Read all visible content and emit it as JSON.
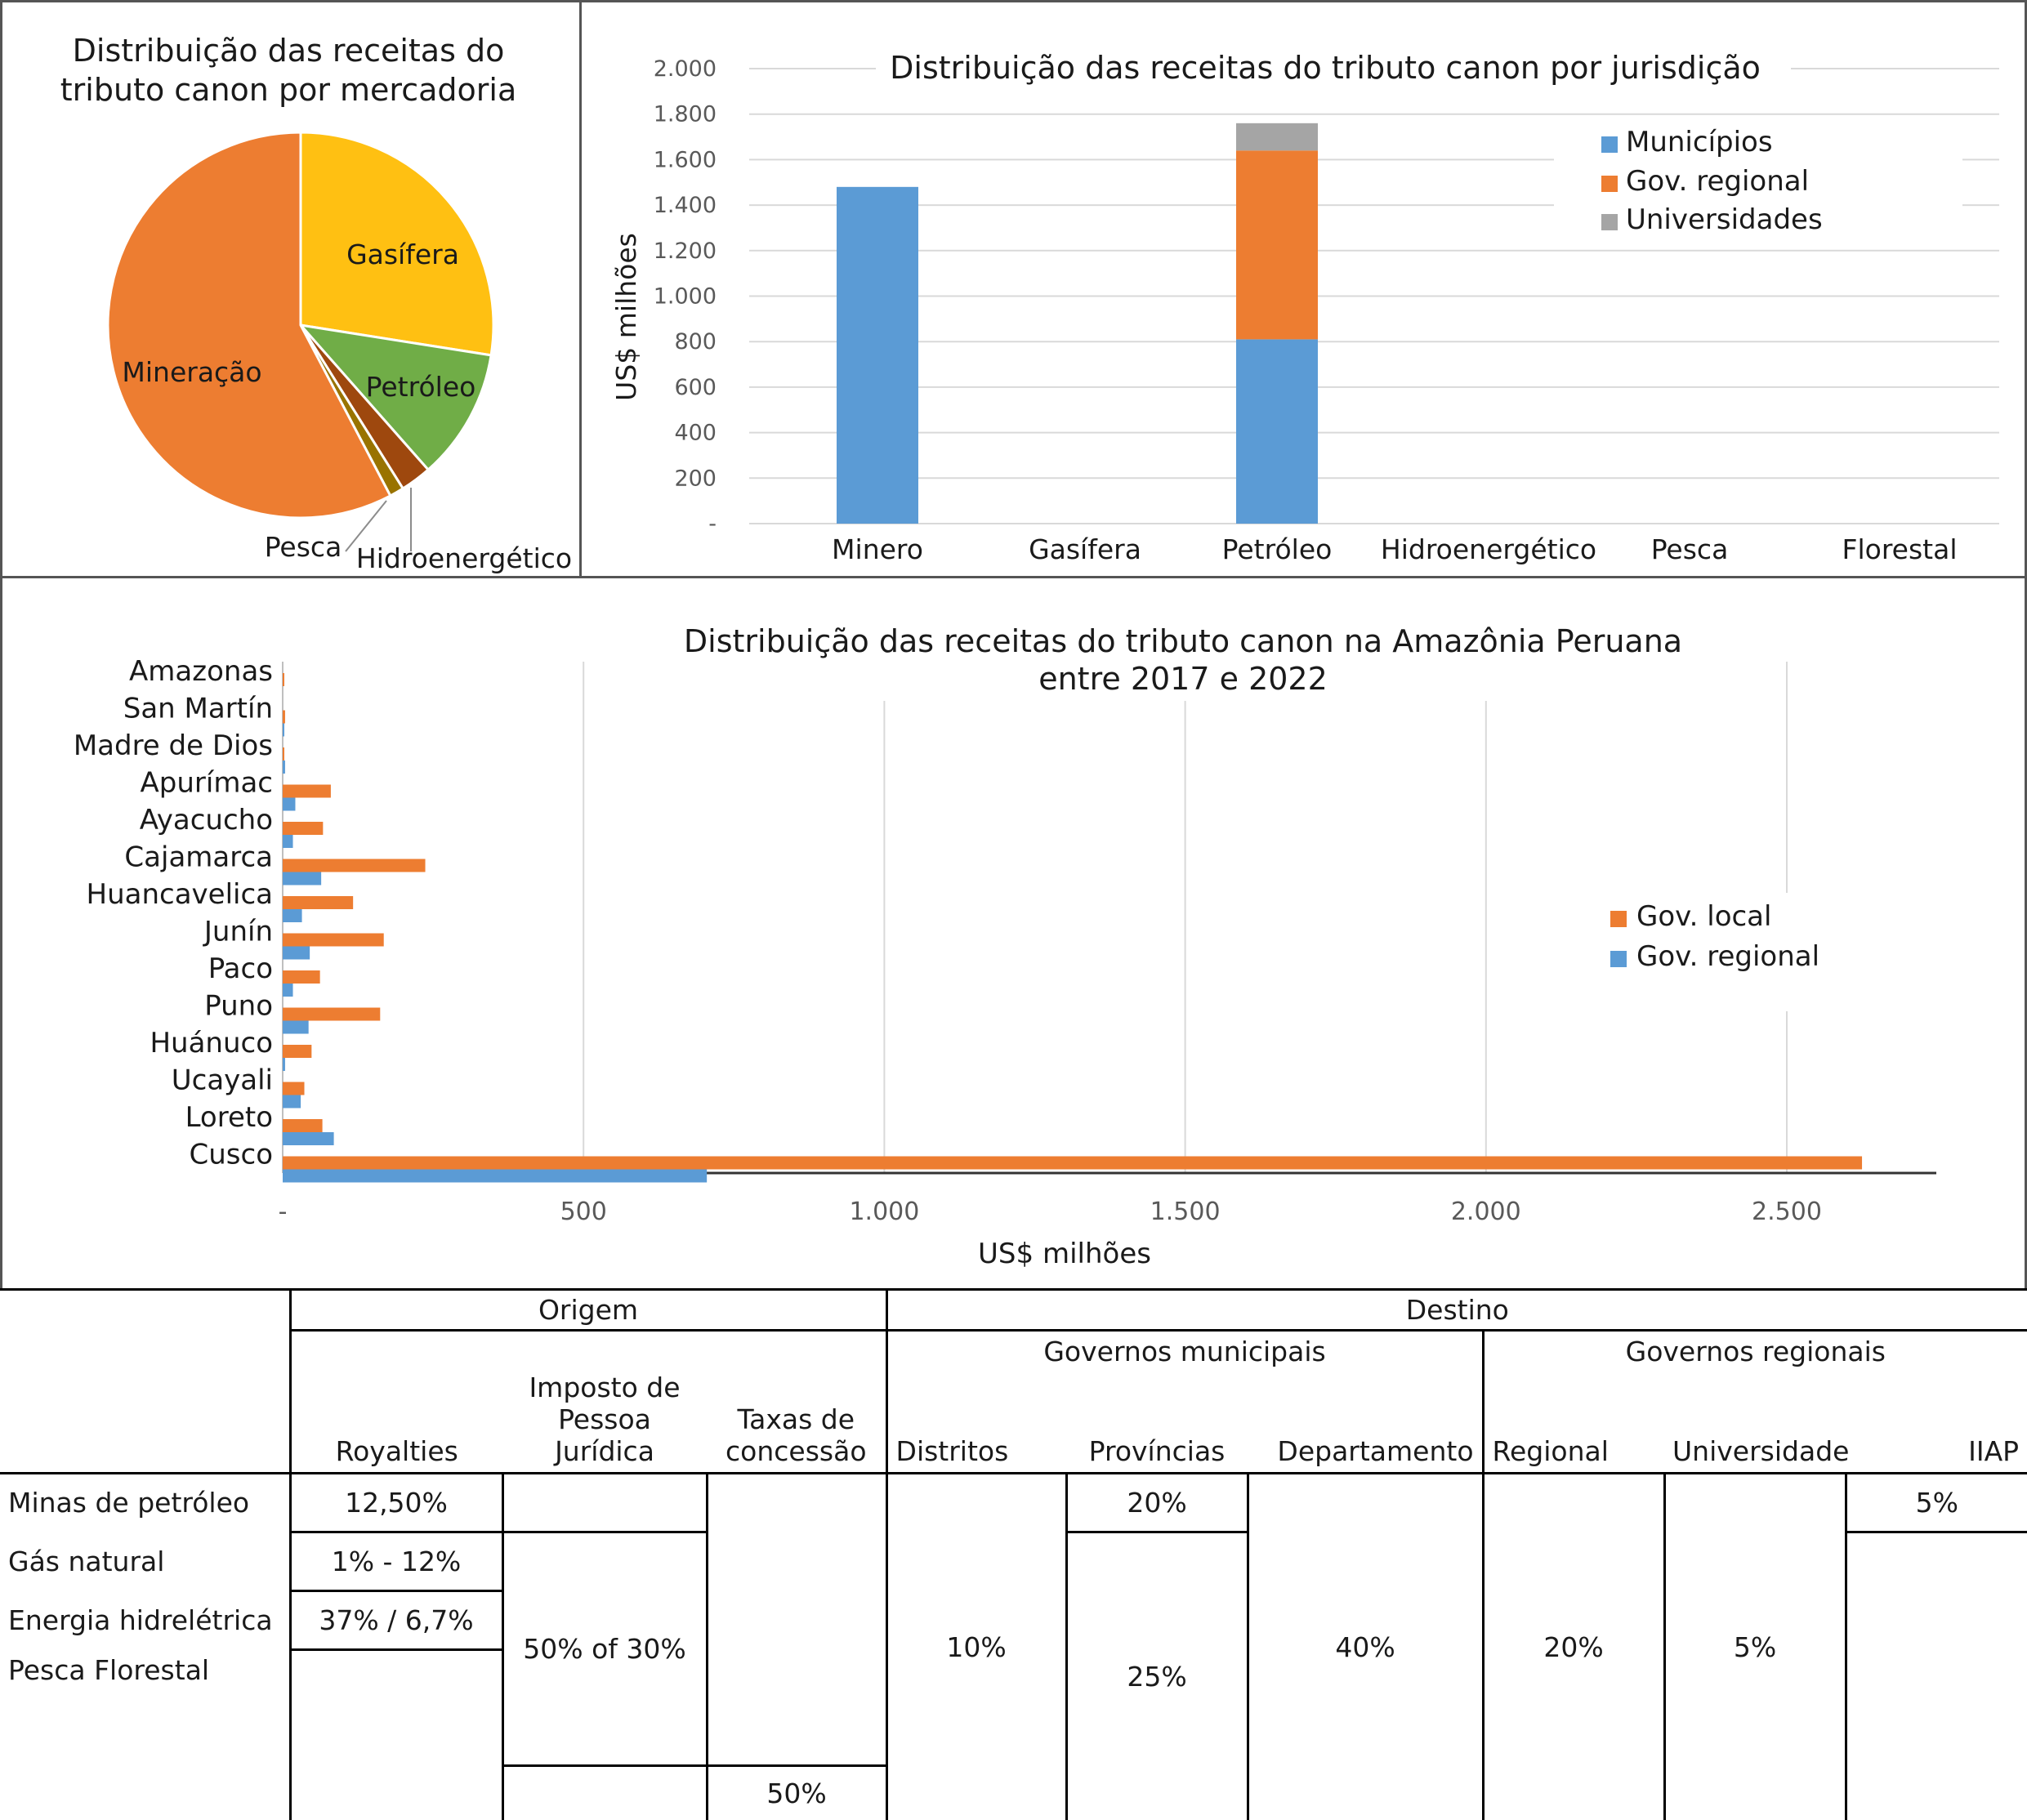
{
  "chart_data": [
    {
      "type": "pie",
      "title": "Distribuição das receitas do tributo canon por mercadoria",
      "title_lines": [
        "Distribuição das receitas do",
        "tributo canon por mercadoria"
      ],
      "slices": [
        {
          "label": "Gasífera",
          "value": 27.5,
          "color": "#FFC012"
        },
        {
          "label": "Petróleo",
          "value": 11.0,
          "color": "#70AD47"
        },
        {
          "label": "Hidroenergético",
          "value": 2.6,
          "color": "#9E480E"
        },
        {
          "label": "Pesca",
          "value": 1.2,
          "color": "#997300"
        },
        {
          "label": "Mineração",
          "value": 57.7,
          "color": "#ED7D31"
        }
      ]
    },
    {
      "type": "bar",
      "stacked": true,
      "title": "Distribuição das receitas do tributo canon por jurisdição",
      "ylabel": "US$ milhões",
      "categories": [
        "Minero",
        "Gasífera",
        "Petróleo",
        "Hidroenergético",
        "Pesca",
        "Florestal"
      ],
      "ylim": [
        0,
        2000
      ],
      "yticks": [
        "-",
        "200",
        "400",
        "600",
        "800",
        "1.000",
        "1.200",
        "1.400",
        "1.600",
        "1.800",
        "2.000"
      ],
      "series": [
        {
          "name": "Municípios",
          "color": "#5B9BD5",
          "values": [
            1480,
            0,
            810,
            0,
            0,
            0
          ]
        },
        {
          "name": "Gov. regional",
          "color": "#ED7D31",
          "values": [
            0,
            0,
            830,
            0,
            0,
            0
          ]
        },
        {
          "name": "Universidades",
          "color": "#A5A5A5",
          "values": [
            0,
            0,
            120,
            0,
            0,
            0
          ]
        }
      ],
      "legend": "top-right",
      "grid": true
    },
    {
      "type": "bar",
      "orientation": "horizontal",
      "title": "Distribuição das receitas do tributo canon na Amazônia Peruana entre 2017 e 2022",
      "title_lines": [
        "Distribuição das receitas do tributo canon na Amazônia Peruana",
        "entre 2017 e 2022"
      ],
      "xlabel": "US$ milhões",
      "categories": [
        "Amazonas",
        "San Martín",
        "Madre de Dios",
        "Apurímac",
        "Ayacucho",
        "Cajamarca",
        "Huancavelica",
        "Junín",
        "Paco",
        "Puno",
        "Huánuco",
        "Ucayali",
        "Loreto",
        "Cusco"
      ],
      "xlim": [
        0,
        2750
      ],
      "xticks": [
        "-",
        "500",
        "1.000",
        "1.500",
        "2.000",
        "2.500"
      ],
      "series": [
        {
          "name": "Gov. local",
          "color": "#ED7D31",
          "values": [
            1,
            4,
            2,
            80,
            67,
            237,
            117,
            168,
            62,
            162,
            48,
            36,
            66,
            2625
          ]
        },
        {
          "name": "Gov. regional",
          "color": "#5B9BD5",
          "values": [
            0,
            1,
            4,
            21,
            17,
            64,
            32,
            45,
            17,
            43,
            4,
            30,
            85,
            705
          ]
        }
      ],
      "legend": "right",
      "grid": true
    }
  ],
  "table": {
    "header": {
      "origem": "Origem",
      "destino": "Destino",
      "gov_municipais": "Governos municipais",
      "gov_regionais": "Governos regionais",
      "royalties": "Royalties",
      "imposto_l1": "Imposto de",
      "imposto_l2": "Pessoa Jurídica",
      "taxas_l1": "Taxas de",
      "taxas_l2": "concessão",
      "distritos": "Distritos",
      "provincias": "Províncias",
      "departamento": "Departamento",
      "regional": "Regional",
      "universidade": "Universidade",
      "iiap": "IIAP"
    },
    "rows": {
      "minas": "Minas de petróleo",
      "gas": "Gás natural",
      "energia": "Energia hidrelétrica",
      "pesca": "Pesca Florestal"
    },
    "values": {
      "royalty_minas": "12,50%",
      "royalty_gas": "1% - 12%",
      "royalty_energia": "37% / 6,7%",
      "imposto": "50% of 30%",
      "taxas": "50%",
      "distritos": "10%",
      "provincias_top": "20%",
      "provincias": "25%",
      "departamento": "40%",
      "regional": "20%",
      "universidade": "5%",
      "iiap": "5%"
    }
  }
}
